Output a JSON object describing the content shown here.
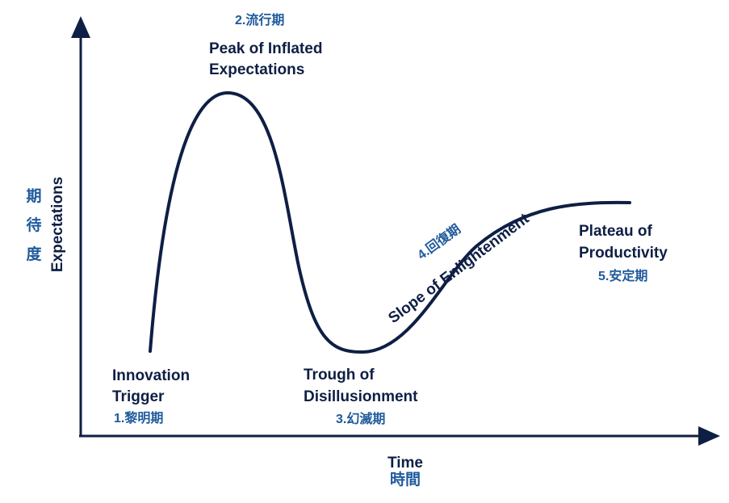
{
  "colors": {
    "curve": "#0e1f45",
    "axis": "#0e1f45",
    "label": "#0e1f45",
    "phase_cjk": "#1f5a9c"
  },
  "axes": {
    "y_label": "Expectations",
    "y_label_cjk": [
      "期",
      "待",
      "度"
    ],
    "x_label": "Time",
    "x_label_cjk": "時間"
  },
  "phases": [
    {
      "number_label": "1.黎明期",
      "title_lines": [
        "Innovation",
        "Trigger"
      ]
    },
    {
      "number_label": "2.流行期",
      "title_lines": [
        "Peak of Inflated",
        "Expectations"
      ]
    },
    {
      "number_label": "3.幻滅期",
      "title_lines": [
        "Trough of",
        "Disillusionment"
      ]
    },
    {
      "number_label": "4.回復期",
      "title_lines": [
        "Slope of Enlightenment"
      ]
    },
    {
      "number_label": "5.安定期",
      "title_lines": [
        "Plateau of",
        "Productivity"
      ]
    }
  ]
}
